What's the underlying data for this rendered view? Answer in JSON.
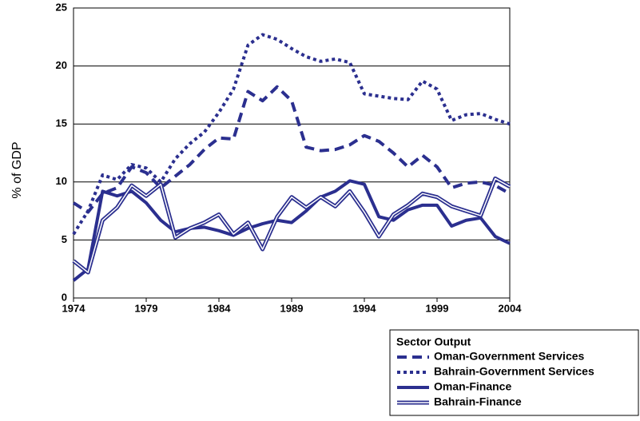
{
  "chart_data": {
    "type": "line",
    "y_label": "% of GDP",
    "x": [
      1974,
      1975,
      1976,
      1977,
      1978,
      1979,
      1980,
      1981,
      1982,
      1983,
      1984,
      1985,
      1986,
      1987,
      1988,
      1989,
      1990,
      1991,
      1992,
      1993,
      1994,
      1995,
      1996,
      1997,
      1998,
      1999,
      2000,
      2001,
      2002,
      2003,
      2004
    ],
    "xlim": [
      1974,
      2004
    ],
    "xticks": [
      1974,
      1979,
      1984,
      1989,
      1994,
      1999,
      2004
    ],
    "ylim": [
      0,
      25
    ],
    "yticks": [
      0,
      5,
      10,
      15,
      20,
      25
    ],
    "grid": true,
    "legend_title": "Sector Output",
    "legend_position": "bottom-right",
    "series": [
      {
        "name": "Oman-Government Services",
        "color": "#2b2f8f",
        "style": "dashed",
        "values": [
          8.2,
          7.4,
          9.0,
          9.5,
          11.3,
          10.8,
          9.5,
          10.5,
          11.5,
          12.8,
          13.8,
          13.7,
          17.8,
          17.0,
          18.2,
          17.0,
          13.0,
          12.7,
          12.8,
          13.2,
          14.0,
          13.5,
          12.5,
          11.3,
          12.3,
          11.3,
          9.5,
          9.9,
          10.0,
          9.7,
          9.0
        ]
      },
      {
        "name": "Bahrain-Government Services",
        "color": "#2b2f8f",
        "style": "dotted",
        "values": [
          5.5,
          7.5,
          10.6,
          10.2,
          11.5,
          11.2,
          10.0,
          12.0,
          13.3,
          14.3,
          16.0,
          18.0,
          21.8,
          22.7,
          22.3,
          21.5,
          20.8,
          20.4,
          20.6,
          20.3,
          17.6,
          17.4,
          17.2,
          17.1,
          18.7,
          18.0,
          15.3,
          15.8,
          15.9,
          15.4,
          15.0
        ]
      },
      {
        "name": "Oman-Finance",
        "color": "#2b2f8f",
        "style": "solid",
        "values": [
          1.5,
          2.5,
          9.2,
          8.8,
          9.2,
          8.2,
          6.7,
          5.7,
          6.0,
          6.1,
          5.8,
          5.4,
          6.0,
          6.4,
          6.7,
          6.5,
          7.5,
          8.7,
          9.2,
          10.1,
          9.8,
          7.0,
          6.7,
          7.6,
          8.0,
          8.0,
          6.2,
          6.7,
          6.9,
          5.3,
          4.7
        ]
      },
      {
        "name": "Bahrain-Finance",
        "color": "#2b2f8f",
        "style": "double",
        "values": [
          3.2,
          2.2,
          6.7,
          7.8,
          9.7,
          8.8,
          9.8,
          5.2,
          6.0,
          6.5,
          7.2,
          5.5,
          6.5,
          4.2,
          7.0,
          8.7,
          7.8,
          8.7,
          7.9,
          9.2,
          7.4,
          5.3,
          7.2,
          8.0,
          9.0,
          8.7,
          7.9,
          7.5,
          7.1,
          10.3,
          9.6
        ]
      }
    ]
  }
}
